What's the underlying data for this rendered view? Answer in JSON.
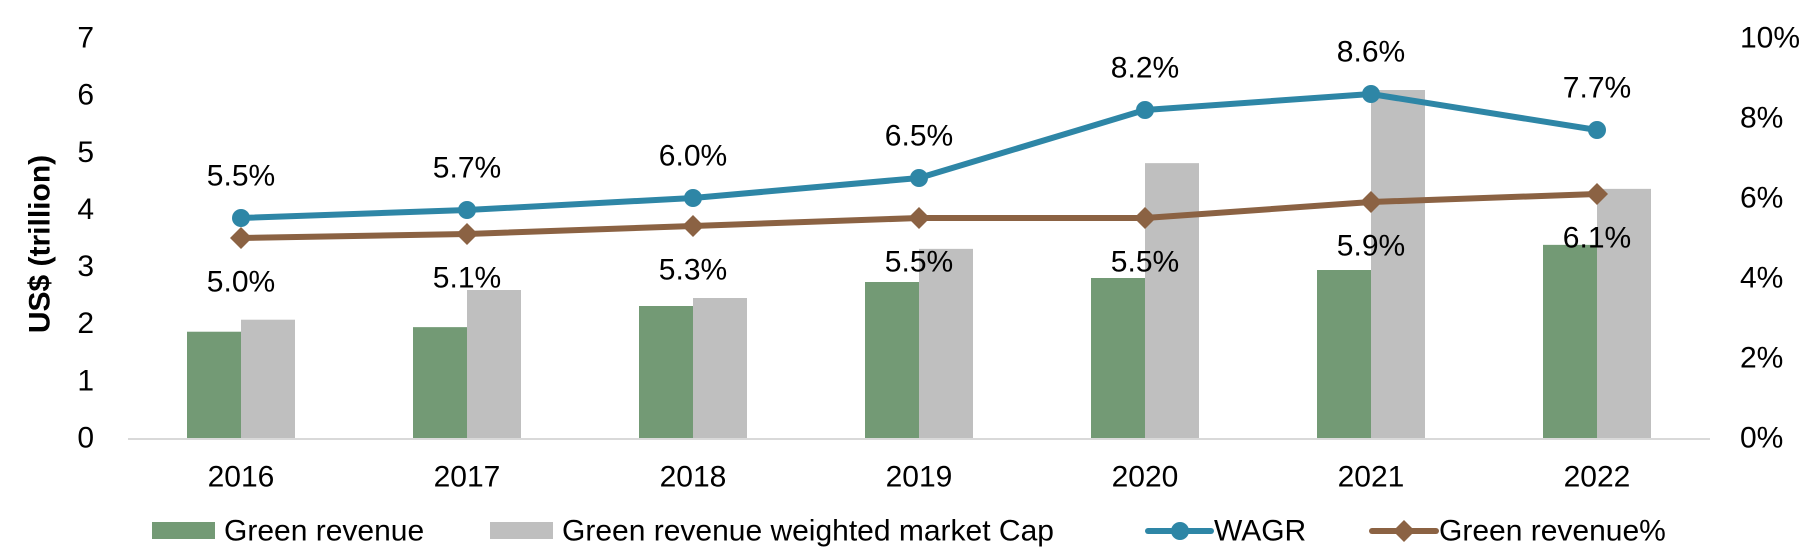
{
  "chart_data": {
    "type": "bar",
    "title": "",
    "xlabel": "",
    "ylabel": "US$ (trillion)",
    "y2label": "",
    "ylim": [
      0,
      7
    ],
    "y2lim": [
      0,
      10
    ],
    "yticks": [
      "0",
      "1",
      "2",
      "3",
      "4",
      "5",
      "6",
      "7"
    ],
    "y2ticks": [
      "0%",
      "2%",
      "4%",
      "6%",
      "8%",
      "10%"
    ],
    "grid": false,
    "legend_position": "bottom",
    "categories": [
      "2016",
      "2017",
      "2018",
      "2019",
      "2020",
      "2021",
      "2022"
    ],
    "series": [
      {
        "name": "Green revenue",
        "type": "bar",
        "axis": "left",
        "color": "#739a75",
        "values": [
          1.86,
          1.94,
          2.31,
          2.73,
          2.8,
          2.94,
          3.38
        ]
      },
      {
        "name": "Green revenue weighted market Cap",
        "type": "bar",
        "axis": "left",
        "color": "#bfbfbf",
        "values": [
          2.07,
          2.59,
          2.45,
          3.31,
          4.81,
          6.09,
          4.36
        ]
      },
      {
        "name": "WAGR",
        "type": "line",
        "axis": "right",
        "marker": "circle",
        "color": "#2e86a6",
        "values": [
          5.5,
          5.7,
          6.0,
          6.5,
          8.2,
          8.6,
          7.7
        ],
        "labels": [
          "5.5%",
          "5.7%",
          "6.0%",
          "6.5%",
          "8.2%",
          "8.6%",
          "7.7%"
        ]
      },
      {
        "name": "Green revenue%",
        "type": "line",
        "axis": "right",
        "marker": "diamond",
        "color": "#8b6243",
        "values": [
          5.0,
          5.1,
          5.3,
          5.5,
          5.5,
          5.9,
          6.1
        ],
        "labels": [
          "5.0%",
          "5.1%",
          "5.3%",
          "5.5%",
          "5.5%",
          "5.9%",
          "6.1%"
        ]
      }
    ],
    "axis_line_color": "#d9d9d9"
  }
}
